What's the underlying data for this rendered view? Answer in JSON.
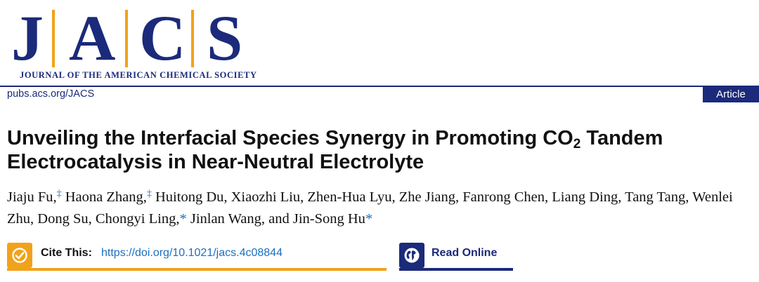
{
  "journal": {
    "letters": [
      "J",
      "A",
      "C",
      "S"
    ],
    "subtitle": "JOURNAL OF THE AMERICAN CHEMICAL SOCIETY",
    "url": "pubs.acs.org/JACS",
    "badge": "Article"
  },
  "title": {
    "before_sub": "Unveiling the Interfacial Species Synergy in Promoting CO",
    "subscript": "2",
    "after_sub": " Tandem Electrocatalysis in Near-Neutral Electrolyte"
  },
  "authors": [
    {
      "name": "Jiaju Fu,",
      "mark": "‡"
    },
    {
      "name": "Haona Zhang,",
      "mark": "‡"
    },
    {
      "name": "Huitong Du,",
      "mark": ""
    },
    {
      "name": "Xiaozhi Liu,",
      "mark": ""
    },
    {
      "name": "Zhen-Hua Lyu,",
      "mark": ""
    },
    {
      "name": "Zhe Jiang,",
      "mark": ""
    },
    {
      "name": "Fanrong Chen,",
      "mark": ""
    },
    {
      "name": "Liang Ding,",
      "mark": ""
    },
    {
      "name": "Tang Tang,",
      "mark": ""
    },
    {
      "name": "Wenlei Zhu,",
      "mark": ""
    },
    {
      "name": "Dong Su,",
      "mark": ""
    },
    {
      "name": "Chongyi Ling,",
      "mark": "*"
    },
    {
      "name": "Jinlan Wang,",
      "mark": ""
    },
    {
      "name": "and Jin-Song Hu",
      "mark": "*"
    }
  ],
  "cite": {
    "label": "Cite This:",
    "doi": "https://doi.org/10.1021/jacs.4c08844"
  },
  "read_online": {
    "label": "Read Online"
  },
  "colors": {
    "navy": "#1b2a7a",
    "orange": "#f2a21a",
    "link_blue": "#1b6fbf"
  },
  "icons": {
    "cite": "checkmark-icon",
    "read": "globe-icon"
  }
}
